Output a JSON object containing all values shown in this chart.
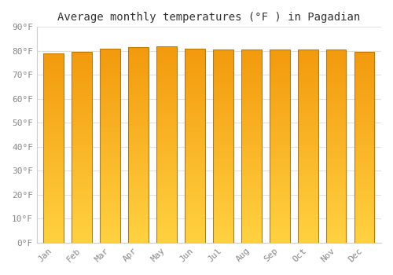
{
  "title": "Average monthly temperatures (°F ) in Pagadian",
  "months": [
    "Jan",
    "Feb",
    "Mar",
    "Apr",
    "May",
    "Jun",
    "Jul",
    "Aug",
    "Sep",
    "Oct",
    "Nov",
    "Dec"
  ],
  "values": [
    79,
    79.5,
    81,
    81.5,
    82,
    81,
    80.5,
    80.5,
    80.5,
    80.5,
    80.5,
    79.5
  ],
  "ylim": [
    0,
    90
  ],
  "yticks": [
    0,
    10,
    20,
    30,
    40,
    50,
    60,
    70,
    80,
    90
  ],
  "ytick_labels": [
    "0°F",
    "10°F",
    "20°F",
    "30°F",
    "40°F",
    "50°F",
    "60°F",
    "70°F",
    "80°F",
    "90°F"
  ],
  "bar_color_mid": "#F5A623",
  "bar_color_bottom": "#FFD055",
  "bar_color_top": "#E89010",
  "bar_edge_color": "#C07800",
  "background_color": "#FFFFFF",
  "grid_color": "#E0E0E0",
  "title_fontsize": 10,
  "tick_fontsize": 8,
  "title_color": "#333333",
  "tick_color": "#888888",
  "n_gradient_steps": 100
}
